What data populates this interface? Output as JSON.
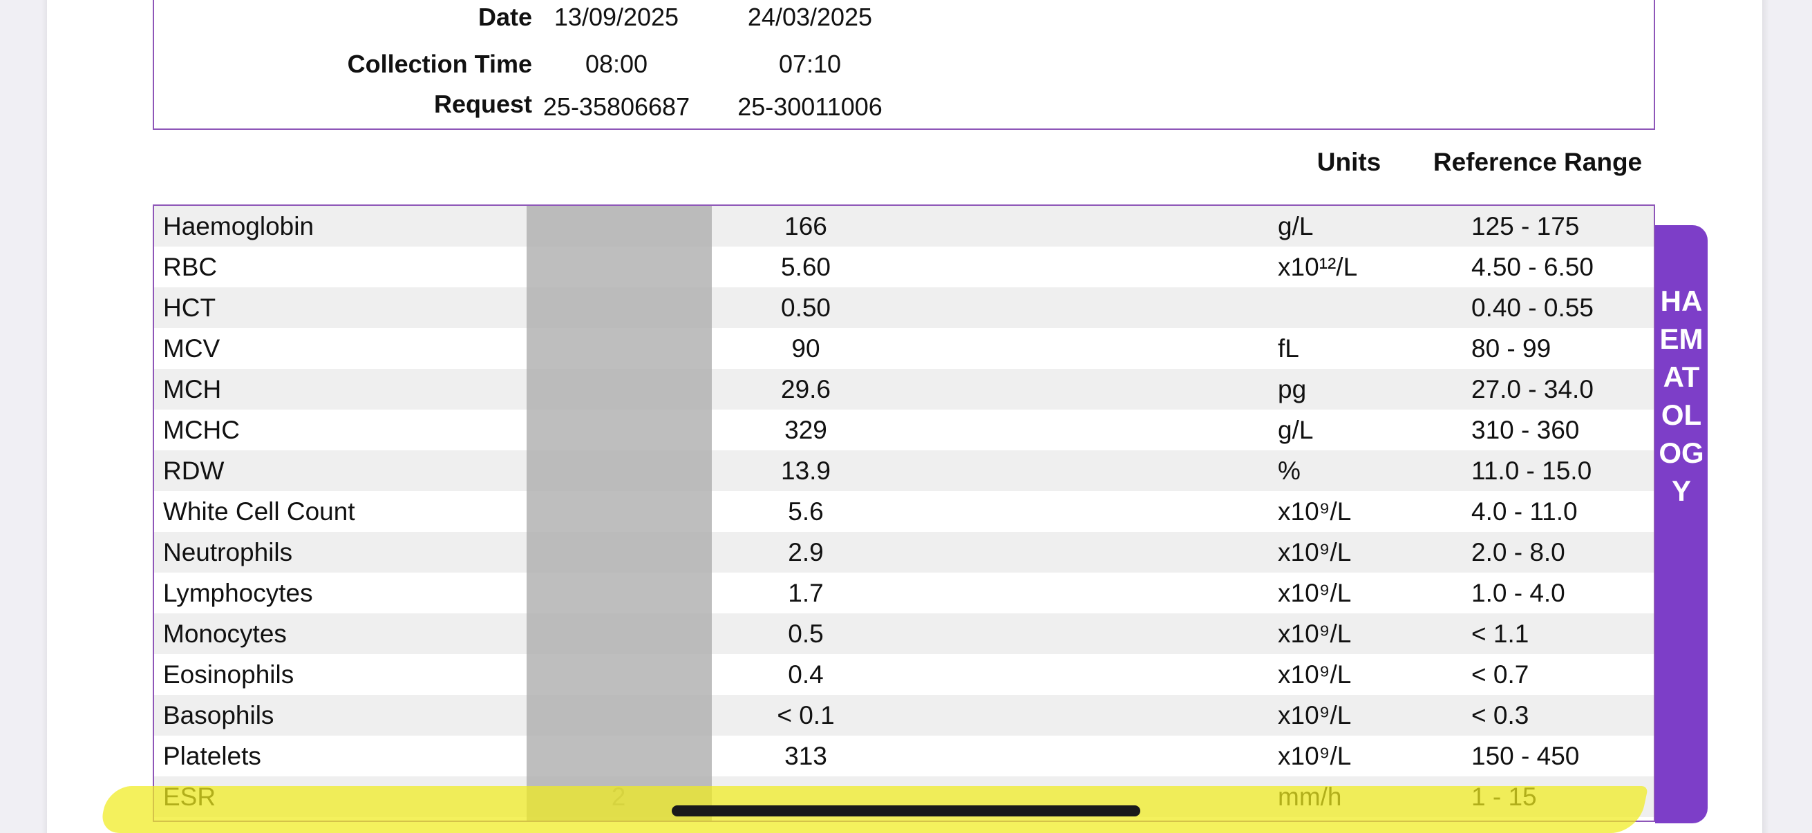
{
  "header": {
    "date_label": "Date",
    "time_label": "Collection Time",
    "request_label": "Request",
    "columns": [
      {
        "date": "13/09/2025",
        "time": "08:00",
        "request": "25-35806687"
      },
      {
        "date": "24/03/2025",
        "time": "07:10",
        "request": "25-30011006"
      }
    ]
  },
  "table_header": {
    "units": "Units",
    "reference_range": "Reference Range"
  },
  "section_tab": "HAEMATOLOGY",
  "rows": [
    {
      "name": "Haemoglobin",
      "v1": "",
      "v2": "166",
      "unit": "g/L",
      "range": "125 - 175"
    },
    {
      "name": "RBC",
      "v1": "",
      "v2": "5.60",
      "unit": "x10¹²/L",
      "range": "4.50 - 6.50"
    },
    {
      "name": "HCT",
      "v1": "",
      "v2": "0.50",
      "unit": "",
      "range": "0.40 - 0.55"
    },
    {
      "name": "MCV",
      "v1": "",
      "v2": "90",
      "unit": "fL",
      "range": "80 - 99"
    },
    {
      "name": "MCH",
      "v1": "",
      "v2": "29.6",
      "unit": "pg",
      "range": "27.0 - 34.0"
    },
    {
      "name": "MCHC",
      "v1": "",
      "v2": "329",
      "unit": "g/L",
      "range": "310 - 360"
    },
    {
      "name": "RDW",
      "v1": "",
      "v2": "13.9",
      "unit": "%",
      "range": "11.0 - 15.0"
    },
    {
      "name": "White Cell Count",
      "v1": "",
      "v2": "5.6",
      "unit": "x10⁹/L",
      "range": "4.0 - 11.0"
    },
    {
      "name": "Neutrophils",
      "v1": "",
      "v2": "2.9",
      "unit": "x10⁹/L",
      "range": "2.0 - 8.0"
    },
    {
      "name": "Lymphocytes",
      "v1": "",
      "v2": "1.7",
      "unit": "x10⁹/L",
      "range": "1.0 - 4.0"
    },
    {
      "name": "Monocytes",
      "v1": "",
      "v2": "0.5",
      "unit": "x10⁹/L",
      "range": "< 1.1"
    },
    {
      "name": "Eosinophils",
      "v1": "",
      "v2": "0.4",
      "unit": "x10⁹/L",
      "range": "< 0.7"
    },
    {
      "name": "Basophils",
      "v1": "",
      "v2": "< 0.1",
      "unit": "x10⁹/L",
      "range": "< 0.3"
    },
    {
      "name": "Platelets",
      "v1": "",
      "v2": "313",
      "unit": "x10⁹/L",
      "range": "150 - 450"
    },
    {
      "name": "ESR",
      "v1": "2",
      "v2": "",
      "unit": "mm/h",
      "range": "1 - 15"
    }
  ],
  "colors": {
    "accent_purple": "#7d3ec8",
    "border_purple": "#8e56b8",
    "highlight_yellow": "#f0ec1e",
    "row_alt": "#efefef"
  }
}
